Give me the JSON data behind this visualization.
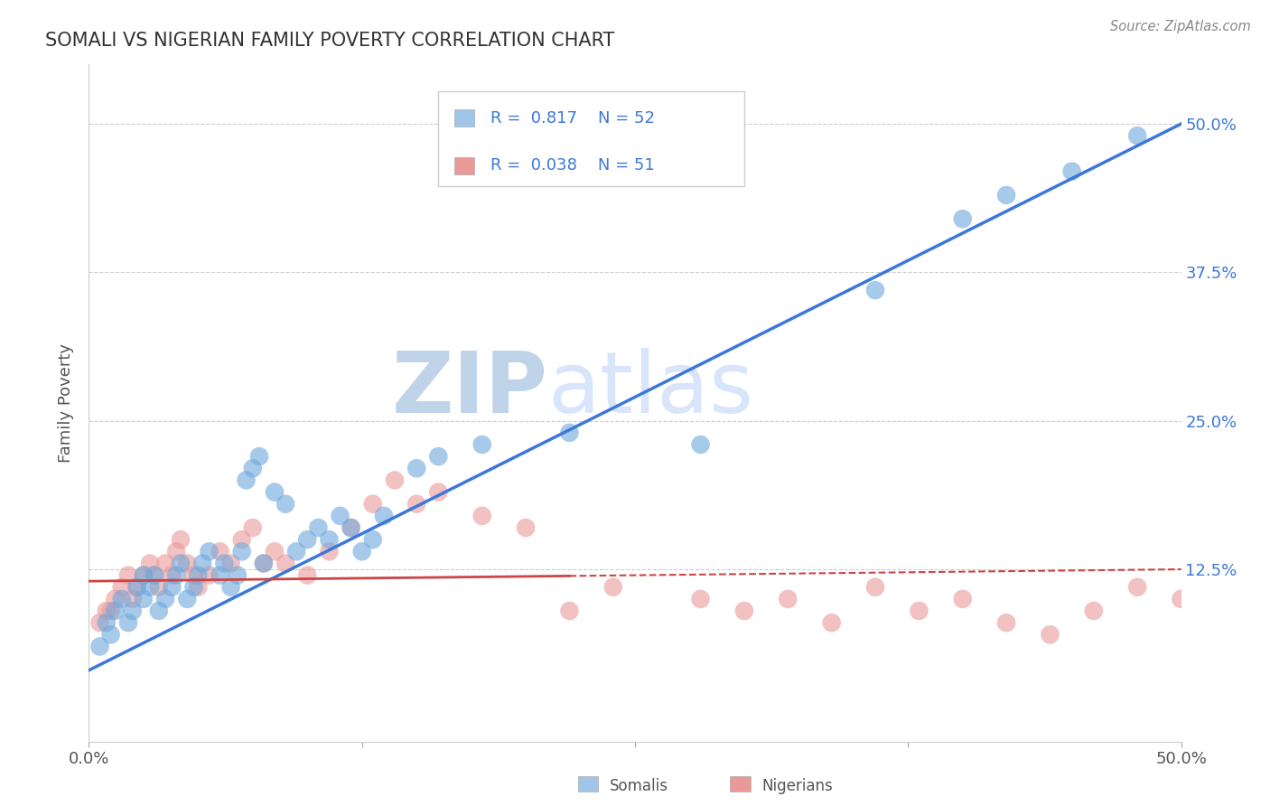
{
  "title": "SOMALI VS NIGERIAN FAMILY POVERTY CORRELATION CHART",
  "source": "Source: ZipAtlas.com",
  "ylabel": "Family Poverty",
  "xlim": [
    0.0,
    0.5
  ],
  "ylim": [
    -0.02,
    0.55
  ],
  "x_tick_labels": [
    "0.0%",
    "",
    "",
    "",
    "50.0%"
  ],
  "x_tick_values": [
    0.0,
    0.125,
    0.25,
    0.375,
    0.5
  ],
  "y_tick_labels": [
    "12.5%",
    "25.0%",
    "37.5%",
    "50.0%"
  ],
  "y_tick_values": [
    0.125,
    0.25,
    0.375,
    0.5
  ],
  "somali_color": "#6fa8dc",
  "nigerian_color": "#ea9999",
  "somali_R": 0.817,
  "somali_N": 52,
  "nigerian_R": 0.038,
  "nigerian_N": 51,
  "somali_line_color": "#3c78d8",
  "nigerian_line_color": "#cc4444",
  "watermark_zip": "ZIP",
  "watermark_atlas": "atlas",
  "watermark_color_zip": "#b4c7e7",
  "watermark_color_atlas": "#9fc5e8",
  "legend_somali_color": "#9fc5e8",
  "legend_nigerian_color": "#ea9999",
  "grid_color": "#cccccc",
  "somali_scatter_x": [
    0.005,
    0.008,
    0.01,
    0.012,
    0.015,
    0.018,
    0.02,
    0.022,
    0.025,
    0.025,
    0.028,
    0.03,
    0.032,
    0.035,
    0.038,
    0.04,
    0.042,
    0.045,
    0.048,
    0.05,
    0.052,
    0.055,
    0.06,
    0.062,
    0.065,
    0.068,
    0.07,
    0.072,
    0.075,
    0.078,
    0.08,
    0.085,
    0.09,
    0.095,
    0.1,
    0.105,
    0.11,
    0.115,
    0.12,
    0.125,
    0.13,
    0.135,
    0.15,
    0.16,
    0.18,
    0.22,
    0.28,
    0.36,
    0.4,
    0.42,
    0.45,
    0.48
  ],
  "somali_scatter_y": [
    0.06,
    0.08,
    0.07,
    0.09,
    0.1,
    0.08,
    0.09,
    0.11,
    0.12,
    0.1,
    0.11,
    0.12,
    0.09,
    0.1,
    0.11,
    0.12,
    0.13,
    0.1,
    0.11,
    0.12,
    0.13,
    0.14,
    0.12,
    0.13,
    0.11,
    0.12,
    0.14,
    0.2,
    0.21,
    0.22,
    0.13,
    0.19,
    0.18,
    0.14,
    0.15,
    0.16,
    0.15,
    0.17,
    0.16,
    0.14,
    0.15,
    0.17,
    0.21,
    0.22,
    0.23,
    0.24,
    0.23,
    0.36,
    0.42,
    0.44,
    0.46,
    0.49
  ],
  "nigerian_scatter_x": [
    0.005,
    0.008,
    0.01,
    0.012,
    0.015,
    0.018,
    0.02,
    0.022,
    0.025,
    0.028,
    0.03,
    0.032,
    0.035,
    0.038,
    0.04,
    0.042,
    0.045,
    0.048,
    0.05,
    0.055,
    0.06,
    0.065,
    0.07,
    0.075,
    0.08,
    0.085,
    0.09,
    0.1,
    0.11,
    0.12,
    0.13,
    0.14,
    0.15,
    0.16,
    0.18,
    0.2,
    0.22,
    0.24,
    0.28,
    0.3,
    0.32,
    0.34,
    0.36,
    0.38,
    0.4,
    0.42,
    0.44,
    0.46,
    0.48,
    0.5,
    0.52
  ],
  "nigerian_scatter_y": [
    0.08,
    0.09,
    0.09,
    0.1,
    0.11,
    0.12,
    0.1,
    0.11,
    0.12,
    0.13,
    0.12,
    0.11,
    0.13,
    0.12,
    0.14,
    0.15,
    0.13,
    0.12,
    0.11,
    0.12,
    0.14,
    0.13,
    0.15,
    0.16,
    0.13,
    0.14,
    0.13,
    0.12,
    0.14,
    0.16,
    0.18,
    0.2,
    0.18,
    0.19,
    0.17,
    0.16,
    0.09,
    0.11,
    0.1,
    0.09,
    0.1,
    0.08,
    0.11,
    0.09,
    0.1,
    0.08,
    0.07,
    0.09,
    0.11,
    0.1,
    0.08
  ],
  "somali_line_x0": 0.0,
  "somali_line_y0": 0.04,
  "somali_line_x1": 0.5,
  "somali_line_y1": 0.5,
  "nigerian_line_solid_x0": 0.0,
  "nigerian_line_solid_x1": 0.22,
  "nigerian_line_dash_x0": 0.22,
  "nigerian_line_dash_x1": 0.5,
  "nigerian_line_y_intercept": 0.115,
  "nigerian_line_slope": 0.02
}
